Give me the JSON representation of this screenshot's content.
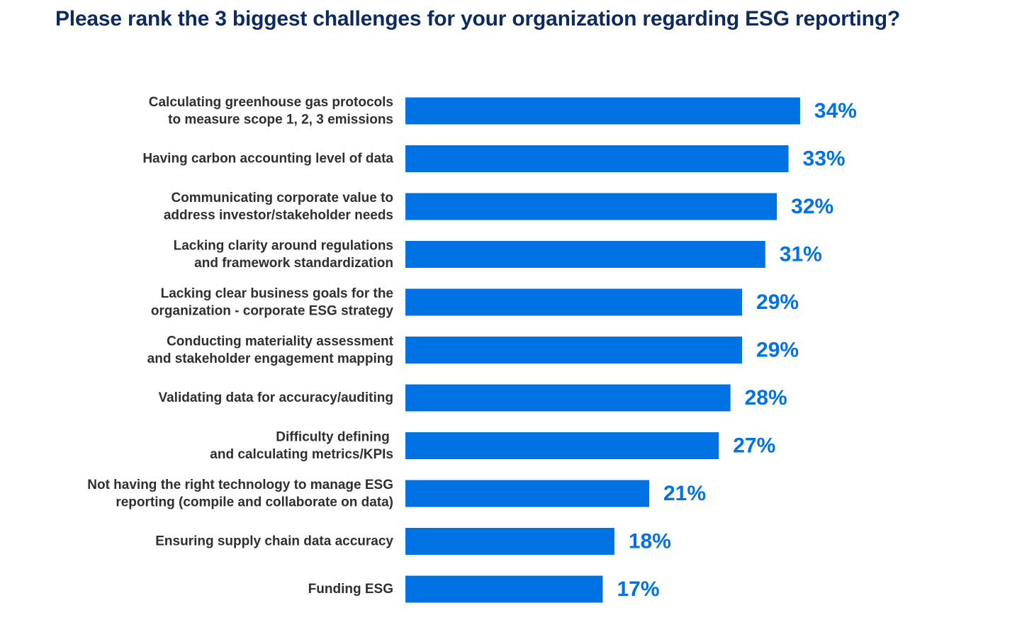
{
  "chart_data": {
    "type": "bar",
    "orientation": "horizontal",
    "title": "Please rank the 3 biggest challenges for your organization regarding ESG reporting?",
    "xlabel": "",
    "ylabel": "",
    "grid": false,
    "legend": "none",
    "bar_color": "#0072e3",
    "value_label_color": "#0072e3",
    "title_color": "#0d2b5e",
    "unit": "%",
    "categories": [
      [
        "Calculating greenhouse gas protocols",
        "to measure scope 1, 2, 3 emissions"
      ],
      [
        "Having carbon accounting level of data"
      ],
      [
        "Communicating corporate value to",
        "address investor/stakeholder needs"
      ],
      [
        "Lacking clarity around regulations",
        "and framework standardization"
      ],
      [
        "Lacking clear business goals for the",
        "organization - corporate ESG strategy"
      ],
      [
        "Conducting materiality assessment",
        "and stakeholder engagement mapping"
      ],
      [
        "Validating data for accuracy/auditing"
      ],
      [
        "Difficulty defining ",
        "and calculating metrics/KPIs"
      ],
      [
        "Not having the right technology to manage ESG",
        "reporting (compile and collaborate on data)"
      ],
      [
        "Ensuring supply chain data accuracy"
      ],
      [
        "Funding ESG"
      ]
    ],
    "values": [
      34,
      33,
      32,
      31,
      29,
      29,
      28,
      27,
      21,
      18,
      17
    ],
    "value_labels": [
      "34%",
      "33%",
      "32%",
      "31%",
      "29%",
      "29%",
      "28%",
      "27%",
      "21%",
      "18%",
      "17%"
    ]
  }
}
